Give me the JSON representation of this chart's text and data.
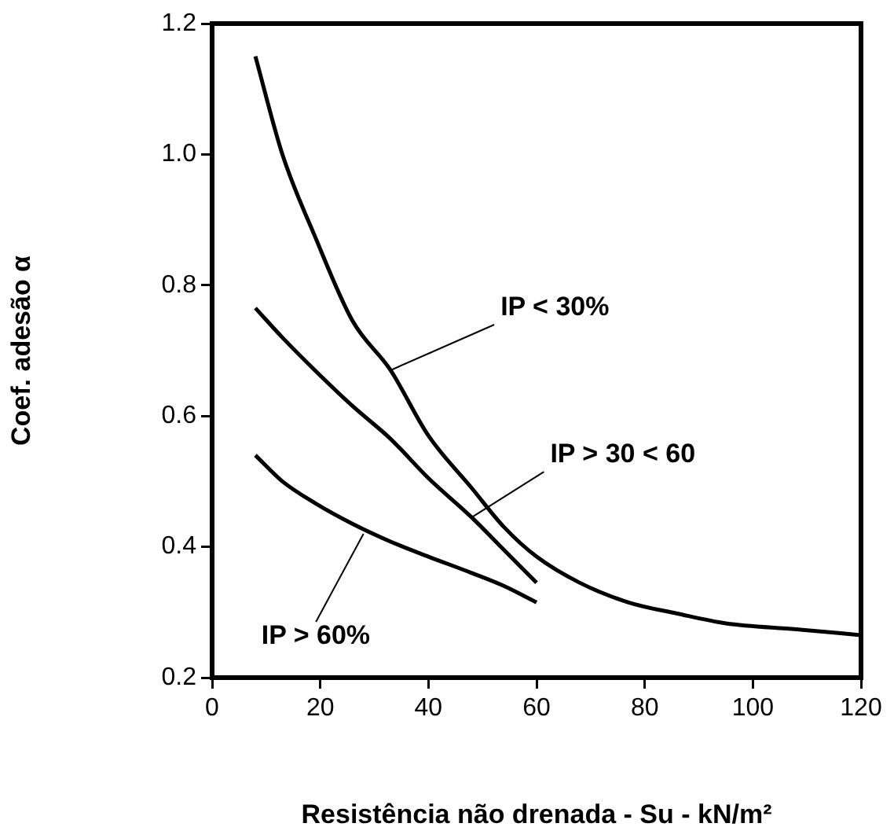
{
  "chart_data": {
    "type": "line",
    "xlabel": "Resistência não drenada - Su - kN/m²",
    "ylabel": "Coef. adesão α",
    "xlim": [
      0,
      120
    ],
    "xticks": [
      0,
      20,
      40,
      60,
      80,
      100,
      120
    ],
    "ylim": [
      0.2,
      1.2
    ],
    "yticks": [
      {
        "value": 0.2,
        "label": "0.2"
      },
      {
        "value": 0.4,
        "label": "0.4"
      },
      {
        "value": 0.6,
        "label": "0.6"
      },
      {
        "value": 0.8,
        "label": "0.8"
      },
      {
        "value": 1,
        "label": "1.0"
      },
      {
        "value": 1.2,
        "label": "1.2"
      }
    ],
    "grid": false,
    "legend": false,
    "marker": "none",
    "line_style": "solid",
    "series": [
      {
        "color": "#000000",
        "x": [
          8,
          13,
          19,
          26,
          33,
          40,
          48,
          54,
          60,
          68,
          77,
          86,
          95,
          108,
          120
        ],
        "values": [
          1.15,
          1.0,
          0.875,
          0.745,
          0.67,
          0.57,
          0.49,
          0.43,
          0.385,
          0.345,
          0.315,
          0.298,
          0.283,
          0.274,
          0.265
        ]
      },
      {
        "color": "#000000",
        "x": [
          8,
          13,
          19,
          26,
          33,
          40,
          48,
          54,
          60
        ],
        "values": [
          0.765,
          0.72,
          0.67,
          0.615,
          0.565,
          0.505,
          0.445,
          0.395,
          0.345
        ]
      },
      {
        "color": "#000000",
        "x": [
          8,
          13,
          19,
          26,
          33,
          40,
          48,
          54,
          60
        ],
        "values": [
          0.54,
          0.5,
          0.467,
          0.435,
          0.408,
          0.385,
          0.36,
          0.34,
          0.315
        ]
      }
    ],
    "annotations": [
      {
        "text": "IP < 30%",
        "x": 33,
        "y": 0.67
      },
      {
        "text": "IP > 30 < 60",
        "x": 48,
        "y": 0.445
      },
      {
        "text": "IP > 60%",
        "x": 28,
        "y": 0.42
      }
    ]
  }
}
